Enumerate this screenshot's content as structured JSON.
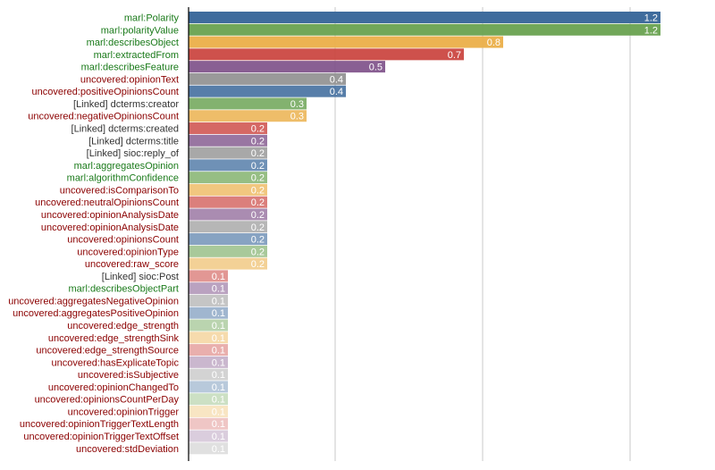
{
  "chart_data": {
    "type": "bar",
    "orientation": "horizontal",
    "title": "",
    "xlabel": "",
    "ylabel": "",
    "xlim": [
      0,
      1.2
    ],
    "grid": true,
    "label_colors": {
      "marl": "#1a7a1a",
      "uncovered": "#8b0000",
      "linked": "#333333"
    },
    "palette": [
      "#3f6c9d",
      "#6ea556",
      "#ebb04a",
      "#cb4540",
      "#7e5189",
      "#8e8e8e"
    ],
    "categories": [
      {
        "label": "marl:Polarity",
        "kind": "marl",
        "value": 1.2
      },
      {
        "label": "marl:polarityValue",
        "kind": "marl",
        "value": 1.2
      },
      {
        "label": "marl:describesObject",
        "kind": "marl",
        "value": 0.8
      },
      {
        "label": "marl:extractedFrom",
        "kind": "marl",
        "value": 0.7
      },
      {
        "label": "marl:describesFeature",
        "kind": "marl",
        "value": 0.5
      },
      {
        "label": "uncovered:opinionText",
        "kind": "uncovered",
        "value": 0.4
      },
      {
        "label": "uncovered:positiveOpinionsCount",
        "kind": "uncovered",
        "value": 0.4
      },
      {
        "label": "[Linked] dcterms:creator",
        "kind": "linked",
        "value": 0.3
      },
      {
        "label": "uncovered:negativeOpinionsCount",
        "kind": "uncovered",
        "value": 0.3
      },
      {
        "label": "[Linked] dcterms:created",
        "kind": "linked",
        "value": 0.2
      },
      {
        "label": "[Linked] dcterms:title",
        "kind": "linked",
        "value": 0.2
      },
      {
        "label": "[Linked] sioc:reply_of",
        "kind": "linked",
        "value": 0.2
      },
      {
        "label": "marl:aggregatesOpinion",
        "kind": "marl",
        "value": 0.2
      },
      {
        "label": "marl:algorithmConfidence",
        "kind": "marl",
        "value": 0.2
      },
      {
        "label": "uncovered:isComparisonTo",
        "kind": "uncovered",
        "value": 0.2
      },
      {
        "label": "uncovered:neutralOpinionsCount",
        "kind": "uncovered",
        "value": 0.2
      },
      {
        "label": "uncovered:opinionAnalysisDate",
        "kind": "uncovered",
        "value": 0.2
      },
      {
        "label": "uncovered:opinionAnalysisDate",
        "kind": "uncovered",
        "value": 0.2
      },
      {
        "label": "uncovered:opinionsCount",
        "kind": "uncovered",
        "value": 0.2
      },
      {
        "label": "uncovered:opinionType",
        "kind": "uncovered",
        "value": 0.2
      },
      {
        "label": "uncovered:raw_score",
        "kind": "uncovered",
        "value": 0.2
      },
      {
        "label": "[Linked] sioc:Post",
        "kind": "linked",
        "value": 0.1
      },
      {
        "label": "marl:describesObjectPart",
        "kind": "marl",
        "value": 0.1
      },
      {
        "label": "uncovered:aggregatesNegativeOpinion",
        "kind": "uncovered",
        "value": 0.1
      },
      {
        "label": "uncovered:aggregatesPositiveOpinion",
        "kind": "uncovered",
        "value": 0.1
      },
      {
        "label": "uncovered:edge_strength",
        "kind": "uncovered",
        "value": 0.1
      },
      {
        "label": "uncovered:edge_strengthSink",
        "kind": "uncovered",
        "value": 0.1
      },
      {
        "label": "uncovered:edge_strengthSource",
        "kind": "uncovered",
        "value": 0.1
      },
      {
        "label": "uncovered:hasExplicateTopic",
        "kind": "uncovered",
        "value": 0.1
      },
      {
        "label": "uncovered:isSubjective",
        "kind": "uncovered",
        "value": 0.1
      },
      {
        "label": "uncovered:opinionChangedTo",
        "kind": "uncovered",
        "value": 0.1
      },
      {
        "label": "uncovered:opinionsCountPerDay",
        "kind": "uncovered",
        "value": 0.1
      },
      {
        "label": "uncovered:opinionTrigger",
        "kind": "uncovered",
        "value": 0.1
      },
      {
        "label": "uncovered:opinionTriggerTextLength",
        "kind": "uncovered",
        "value": 0.1
      },
      {
        "label": "uncovered:opinionTriggerTextOffset",
        "kind": "uncovered",
        "value": 0.1
      },
      {
        "label": "uncovered:stdDeviation",
        "kind": "uncovered",
        "value": 0.1
      }
    ]
  }
}
